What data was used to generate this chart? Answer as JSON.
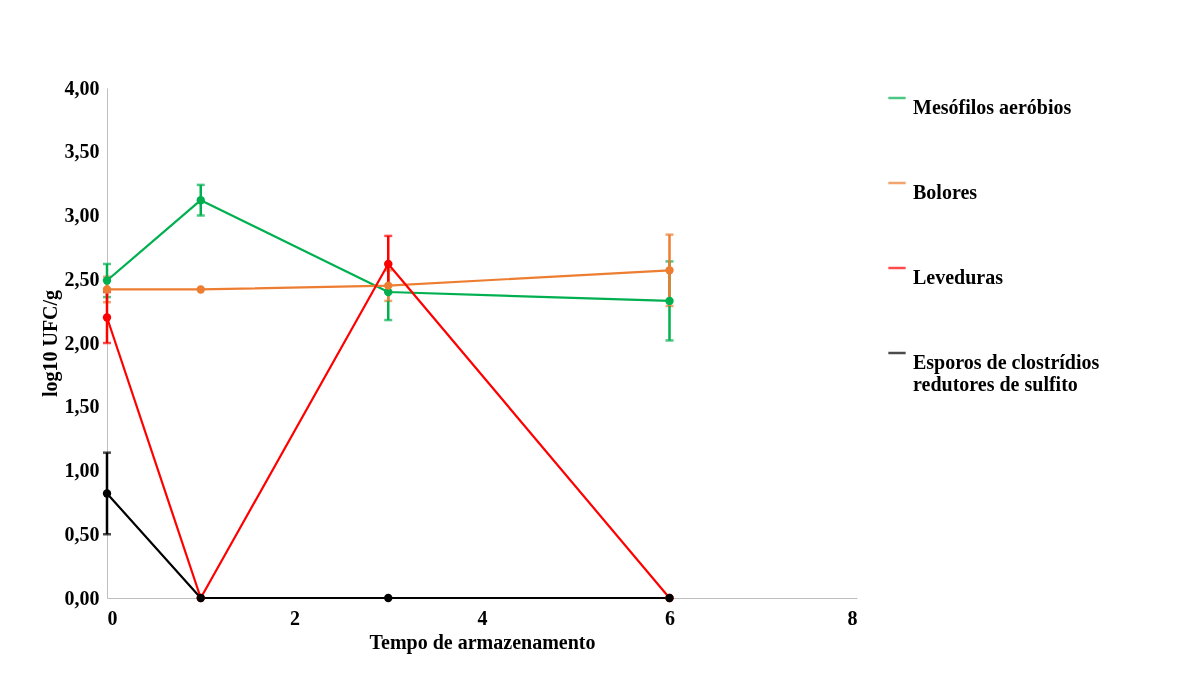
{
  "chart_data": {
    "type": "line",
    "xlabel": "Tempo de armazenamento",
    "ylabel": "log10 UFC/g",
    "x": [
      0,
      1,
      3,
      6
    ],
    "xlim": [
      0,
      8
    ],
    "xticks": [
      0,
      2,
      4,
      6,
      8
    ],
    "ylim": [
      0,
      4
    ],
    "yticks": [
      {
        "value": 0,
        "label": "0,00"
      },
      {
        "value": 0.5,
        "label": "0,50"
      },
      {
        "value": 1,
        "label": "1,00"
      },
      {
        "value": 1.5,
        "label": "1,50"
      },
      {
        "value": 2,
        "label": "2,00"
      },
      {
        "value": 2.5,
        "label": "2,50"
      },
      {
        "value": 3,
        "label": "3,00"
      },
      {
        "value": 3.5,
        "label": "3,50"
      },
      {
        "value": 4,
        "label": "4,00"
      }
    ],
    "grid": false,
    "legend": "right",
    "marker": "circle",
    "line_style": "solid",
    "series": [
      {
        "name": "Mesófilos aeróbios",
        "color": "#00b050",
        "values": [
          2.49,
          3.12,
          2.4,
          2.33
        ],
        "errors": [
          0.13,
          0.12,
          0.22,
          0.31
        ]
      },
      {
        "name": "Bolores",
        "color": "#ed7d31",
        "values": [
          2.42,
          2.42,
          2.45,
          2.57
        ],
        "errors": [
          0.1,
          null,
          0.12,
          0.28
        ]
      },
      {
        "name": "Leveduras",
        "color": "#ff0000",
        "values": [
          2.2,
          0,
          2.62,
          0
        ],
        "errors": [
          0.2,
          null,
          0.22,
          null
        ]
      },
      {
        "name": "Esporos de clostrídios redutores de sulfito",
        "color": "#000000",
        "values": [
          0.82,
          0,
          0,
          0
        ],
        "errors": [
          0.32,
          null,
          null,
          null
        ]
      }
    ]
  }
}
